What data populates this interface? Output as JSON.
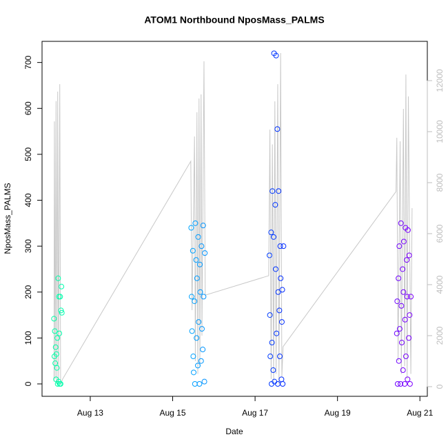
{
  "chart_data": {
    "type": "scatter",
    "title": "ATOM1 Northbound NposMass_PALMS",
    "x_label": "Date",
    "y_label": "NposMass_PALMS",
    "xlim": [
      11.83,
      21.18
    ],
    "xticks": [
      {
        "value": 13,
        "label": "Aug 13"
      },
      {
        "value": 15,
        "label": "Aug 15"
      },
      {
        "value": 17,
        "label": "Aug 17"
      },
      {
        "value": 19,
        "label": "Aug 19"
      },
      {
        "value": 21,
        "label": "Aug 21"
      }
    ],
    "ylim": [
      -27,
      746
    ],
    "yticks": [
      0,
      100,
      200,
      300,
      400,
      500,
      600,
      700
    ],
    "y2lim": [
      -378,
      13540
    ],
    "y2ticks": [
      0,
      2000,
      4000,
      6000,
      8000,
      10000,
      12000
    ],
    "y2_color": "#bebebe",
    "series": [
      {
        "type": "line",
        "axis": "y2",
        "color": "#c8c8c8",
        "x": [
          12.12,
          12.13,
          12.15,
          12.17,
          12.19,
          12.21,
          12.23,
          12.26,
          12.28,
          12.33,
          15.44,
          15.47,
          15.53,
          15.55,
          15.59,
          15.61,
          15.64,
          15.66,
          15.69,
          15.71,
          15.76,
          15.79,
          17.33,
          17.36,
          17.39,
          17.42,
          17.45,
          17.48,
          17.51,
          17.55,
          17.58,
          17.62,
          17.65,
          17.68,
          20.42,
          20.44,
          20.47,
          20.52,
          20.55,
          20.6,
          20.63,
          20.66,
          20.69,
          20.72,
          20.78,
          20.81
        ],
        "values": [
          200,
          10400,
          300,
          11200,
          100,
          11570,
          200,
          11860,
          100,
          300,
          8840,
          3000,
          9810,
          1000,
          10760,
          500,
          11300,
          800,
          11460,
          2000,
          12760,
          3590,
          4350,
          10080,
          300,
          9500,
          200,
          11190,
          500,
          11860,
          100,
          13080,
          400,
          1570,
          7650,
          9760,
          1000,
          9620,
          500,
          10890,
          800,
          12240,
          300,
          11380,
          500,
          7000
        ]
      },
      {
        "type": "scatter",
        "hue_range": [
          155,
          275
        ],
        "x": [
          12.12,
          12.13,
          12.14,
          12.15,
          12.16,
          12.17,
          12.18,
          12.19,
          12.2,
          12.21,
          12.22,
          12.23,
          12.24,
          12.25,
          12.26,
          12.27,
          12.28,
          12.29,
          12.3,
          12.31,
          15.45,
          15.46,
          15.47,
          15.49,
          15.5,
          15.51,
          15.53,
          15.54,
          15.55,
          15.57,
          15.58,
          15.59,
          15.61,
          15.62,
          15.63,
          15.65,
          15.66,
          15.67,
          15.69,
          15.7,
          15.71,
          15.73,
          15.74,
          15.75,
          15.77,
          15.78,
          17.35,
          17.36,
          17.37,
          17.39,
          17.4,
          17.41,
          17.42,
          17.44,
          17.45,
          17.46,
          17.47,
          17.49,
          17.5,
          17.51,
          17.52,
          17.54,
          17.55,
          17.56,
          17.57,
          17.59,
          17.6,
          17.61,
          17.62,
          17.64,
          17.65,
          17.66,
          17.67,
          17.69,
          20.44,
          20.45,
          20.46,
          20.48,
          20.49,
          20.5,
          20.51,
          20.53,
          20.54,
          20.55,
          20.56,
          20.58,
          20.59,
          20.6,
          20.61,
          20.63,
          20.64,
          20.65,
          20.66,
          20.68,
          20.69,
          20.7,
          20.71,
          20.73,
          20.74,
          20.75,
          20.76,
          20.78
        ],
        "values": [
          142,
          60,
          115,
          45,
          80,
          10,
          65,
          35,
          100,
          0,
          230,
          5,
          190,
          110,
          0,
          190,
          0,
          160,
          212,
          155,
          340,
          190,
          115,
          290,
          60,
          25,
          180,
          0,
          350,
          270,
          100,
          230,
          40,
          320,
          135,
          0,
          260,
          200,
          50,
          300,
          120,
          75,
          345,
          190,
          5,
          285,
          280,
          150,
          60,
          330,
          0,
          90,
          420,
          30,
          320,
          720,
          5,
          390,
          250,
          715,
          110,
          555,
          0,
          200,
          420,
          160,
          60,
          300,
          230,
          10,
          135,
          205,
          0,
          300,
          110,
          180,
          0,
          230,
          50,
          300,
          120,
          0,
          350,
          170,
          90,
          250,
          30,
          200,
          310,
          0,
          140,
          340,
          60,
          270,
          190,
          10,
          335,
          100,
          280,
          150,
          0,
          190
        ]
      }
    ]
  }
}
